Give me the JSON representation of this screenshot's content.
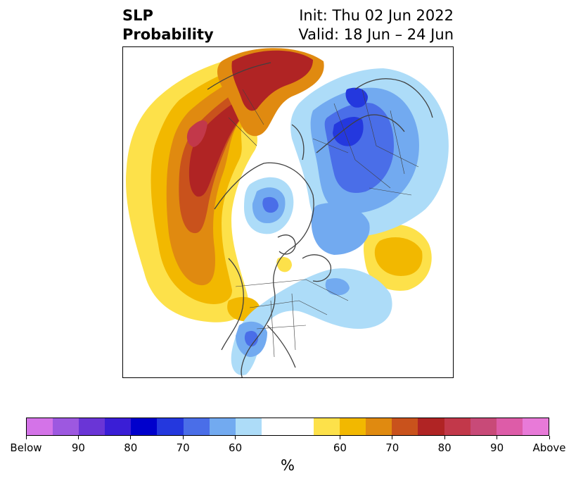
{
  "title": {
    "variable": "SLP",
    "quantity": "Probability",
    "init": "Init: Thu 02 Jun 2022",
    "valid": "Valid: 18 Jun – 24 Jun"
  },
  "map": {
    "projection": "north-polar-stereographic",
    "coastline_color": "#404040",
    "regions": [
      {
        "name": "north-pacific-above",
        "category": "above",
        "peak_level": 85
      },
      {
        "name": "east-pacific-above",
        "category": "above",
        "peak_level": 70
      },
      {
        "name": "siberia-above",
        "category": "above",
        "peak_level": 80
      },
      {
        "name": "north-atlantic-above",
        "category": "above",
        "peak_level": 65
      },
      {
        "name": "hudson-bay-below",
        "category": "below",
        "peak_level": 70
      },
      {
        "name": "arctic-below",
        "category": "below",
        "peak_level": 70
      },
      {
        "name": "scandinavia-russia-below",
        "category": "below",
        "peak_level": 80
      },
      {
        "name": "central-us-below",
        "category": "below",
        "peak_level": 70
      }
    ]
  },
  "colorbar": {
    "unit": "%",
    "colors": [
      "#d473e8",
      "#9d58e0",
      "#6a35d6",
      "#3a1ed6",
      "#0000cc",
      "#2438de",
      "#4a6ee8",
      "#72aaf0",
      "#addcf8",
      "#ffffff",
      "#ffffff",
      "#fde14a",
      "#f2b800",
      "#e08a10",
      "#c9521c",
      "#b02424",
      "#c2384a",
      "#c84a78",
      "#dd5ca8",
      "#e87ad8"
    ],
    "tick_labels": [
      "Below",
      "90",
      "80",
      "70",
      "60",
      "60",
      "70",
      "80",
      "90",
      "Above"
    ],
    "tick_fractions": [
      0,
      0.1,
      0.2,
      0.3,
      0.4,
      0.6,
      0.7,
      0.8,
      0.9,
      1.0
    ]
  }
}
